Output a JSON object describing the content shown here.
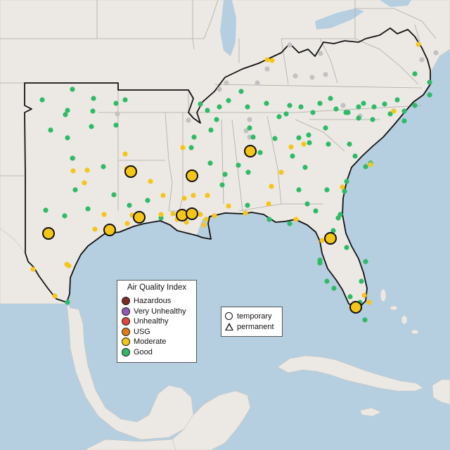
{
  "legend": {
    "title": "Air Quality Index",
    "categories": [
      {
        "label": "Hazardous",
        "color": "#7e2a1f"
      },
      {
        "label": "Very Unhealthy",
        "color": "#8f57b8"
      },
      {
        "label": "Unhealthy",
        "color": "#e1463a"
      },
      {
        "label": "USG",
        "color": "#e07b17"
      },
      {
        "label": "Moderate",
        "color": "#f5c518"
      },
      {
        "label": "Good",
        "color": "#2dbb66"
      }
    ]
  },
  "shape_legend": {
    "temporary": "temporary",
    "permanent": "permanent"
  },
  "colors": {
    "land": "#ece9e5",
    "water": "#b5cfe0",
    "no_data_marker": "#c2c2c2"
  }
}
